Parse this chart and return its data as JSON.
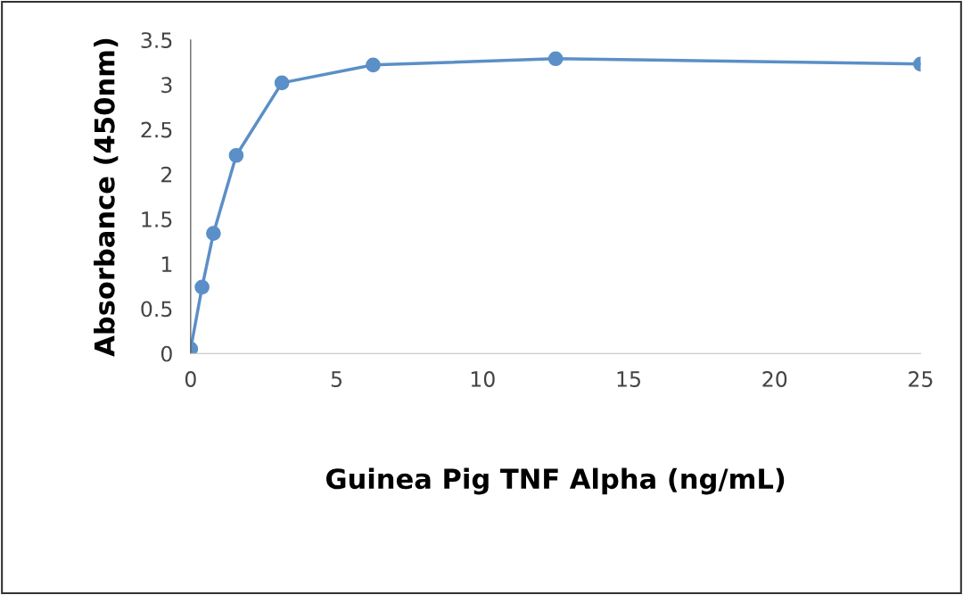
{
  "chart_data": {
    "type": "line",
    "xlabel": "Guinea Pig TNF Alpha (ng/mL)",
    "ylabel": "Absorbance (450nm)",
    "x": [
      0,
      0.39,
      0.78,
      1.56,
      3.125,
      6.25,
      12.5,
      25
    ],
    "series": [
      {
        "color": "#5b8fc7",
        "values": [
          0.05,
          0.74,
          1.34,
          2.21,
          3.02,
          3.22,
          3.29,
          3.23
        ]
      }
    ],
    "xlim": [
      0,
      25
    ],
    "xticks": [
      0,
      5,
      10,
      15,
      20,
      25
    ],
    "ylim": [
      0,
      3.5
    ],
    "yticks": [
      0,
      0.5,
      1,
      1.5,
      2,
      2.5,
      3,
      3.5
    ],
    "grid": false,
    "legend": false,
    "marker": "circle",
    "line_style": "solid"
  }
}
